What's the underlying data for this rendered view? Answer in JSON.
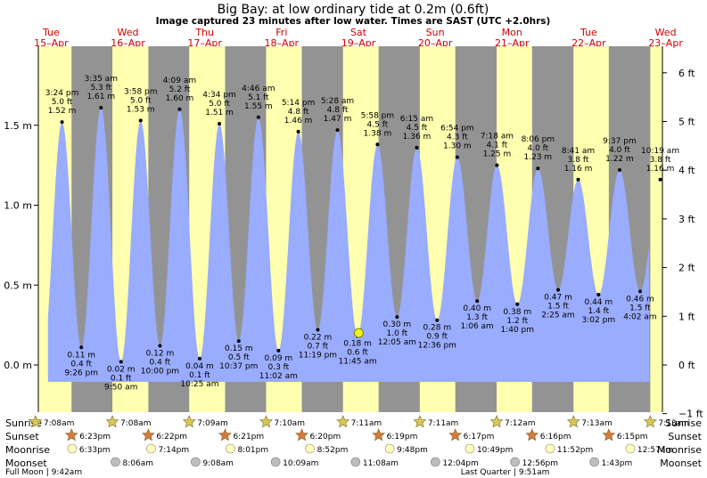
{
  "title": "Big Bay: at low  ordinary tide at 0.2m (0.6ft)",
  "subtitle": "Image captured 23 minutes after low water. Times are SAST (UTC +2.0hrs)",
  "days": [
    {
      "dow": "Tue",
      "date": "15–Apr"
    },
    {
      "dow": "Wed",
      "date": "16–Apr"
    },
    {
      "dow": "Thu",
      "date": "17–Apr"
    },
    {
      "dow": "Fri",
      "date": "18–Apr"
    },
    {
      "dow": "Sat",
      "date": "19–Apr"
    },
    {
      "dow": "Sun",
      "date": "20–Apr"
    },
    {
      "dow": "Mon",
      "date": "21–Apr"
    },
    {
      "dow": "Tue",
      "date": "22–Apr"
    },
    {
      "dow": "Wed",
      "date": "23–Apr"
    }
  ],
  "chart_data": {
    "type": "area",
    "ylabel_left_unit": "m",
    "ylabel_right_unit": "ft",
    "ylim_m": [
      -0.3,
      1.85
    ],
    "yticks_left": [
      "0.0 m",
      "0.5 m",
      "1.0 m",
      "1.5 m"
    ],
    "yticks_left_values": [
      0.0,
      0.5,
      1.0,
      1.5
    ],
    "yticks_right": [
      "−1 ft",
      "0 ft",
      "1 ft",
      "2 ft",
      "3 ft",
      "4 ft",
      "5 ft",
      "6 ft"
    ],
    "yticks_right_values_ft": [
      -1,
      0,
      1,
      2,
      3,
      4,
      5,
      6
    ],
    "start_hour": 8,
    "end_hour": 11,
    "tides": [
      {
        "type": "high",
        "day": 0,
        "time": "3:24 pm",
        "ft": "5.0 ft",
        "m": 1.52
      },
      {
        "type": "low",
        "day": 0,
        "time": "9:26 pm",
        "ft": "0.4 ft",
        "m": 0.11
      },
      {
        "type": "high",
        "day": 1,
        "time": "3:35 am",
        "ft": "5.3 ft",
        "m": 1.61
      },
      {
        "type": "low",
        "day": 1,
        "time": "9:50 am",
        "ft": "0.1 ft",
        "m": 0.02
      },
      {
        "type": "high",
        "day": 1,
        "time": "3:58 pm",
        "ft": "5.0 ft",
        "m": 1.53
      },
      {
        "type": "low",
        "day": 1,
        "time": "10:00 pm",
        "ft": "0.4 ft",
        "m": 0.12
      },
      {
        "type": "high",
        "day": 2,
        "time": "4:09 am",
        "ft": "5.2 ft",
        "m": 1.6
      },
      {
        "type": "low",
        "day": 2,
        "time": "10:25 am",
        "ft": "0.1 ft",
        "m": 0.04
      },
      {
        "type": "high",
        "day": 2,
        "time": "4:34 pm",
        "ft": "5.0 ft",
        "m": 1.51
      },
      {
        "type": "low",
        "day": 2,
        "time": "10:37 pm",
        "ft": "0.5 ft",
        "m": 0.15
      },
      {
        "type": "high",
        "day": 3,
        "time": "4:46 am",
        "ft": "5.1 ft",
        "m": 1.55
      },
      {
        "type": "low",
        "day": 3,
        "time": "11:02 am",
        "ft": "0.3 ft",
        "m": 0.09
      },
      {
        "type": "high",
        "day": 3,
        "time": "5:14 pm",
        "ft": "4.8 ft",
        "m": 1.46
      },
      {
        "type": "low",
        "day": 3,
        "time": "11:19 pm",
        "ft": "0.7 ft",
        "m": 0.22
      },
      {
        "type": "high",
        "day": 4,
        "time": "5:28 am",
        "ft": "4.8 ft",
        "m": 1.47
      },
      {
        "type": "low",
        "day": 4,
        "time": "11:45 am",
        "ft": "0.6 ft",
        "m": 0.18
      },
      {
        "type": "high",
        "day": 4,
        "time": "5:58 pm",
        "ft": "4.5 ft",
        "m": 1.38
      },
      {
        "type": "low",
        "day": 5,
        "time": "12:05 am",
        "ft": "1.0 ft",
        "m": 0.3
      },
      {
        "type": "high",
        "day": 5,
        "time": "6:15 am",
        "ft": "4.5 ft",
        "m": 1.36
      },
      {
        "type": "low",
        "day": 5,
        "time": "12:36 pm",
        "ft": "0.9 ft",
        "m": 0.28
      },
      {
        "type": "high",
        "day": 5,
        "time": "6:54 pm",
        "ft": "4.3 ft",
        "m": 1.3
      },
      {
        "type": "low",
        "day": 6,
        "time": "1:06 am",
        "ft": "1.3 ft",
        "m": 0.4
      },
      {
        "type": "high",
        "day": 6,
        "time": "7:18 am",
        "ft": "4.1 ft",
        "m": 1.25
      },
      {
        "type": "low",
        "day": 6,
        "time": "1:40 pm",
        "ft": "1.2 ft",
        "m": 0.38
      },
      {
        "type": "high",
        "day": 6,
        "time": "8:06 pm",
        "ft": "4.0 ft",
        "m": 1.23
      },
      {
        "type": "low",
        "day": 7,
        "time": "2:25 am",
        "ft": "1.5 ft",
        "m": 0.47
      },
      {
        "type": "high",
        "day": 7,
        "time": "8:41 am",
        "ft": "3.8 ft",
        "m": 1.16
      },
      {
        "type": "low",
        "day": 7,
        "time": "3:02 pm",
        "ft": "1.4 ft",
        "m": 0.44
      },
      {
        "type": "high",
        "day": 7,
        "time": "9:37 pm",
        "ft": "4.0 ft",
        "m": 1.22
      },
      {
        "type": "low",
        "day": 8,
        "time": "4:02 am",
        "ft": "1.5 ft",
        "m": 0.46
      },
      {
        "type": "high",
        "day": 8,
        "time": "10:19 am",
        "ft": "3.8 ft",
        "m": 1.16
      }
    ],
    "current": {
      "day": 4,
      "time": "12:08 pm",
      "m": 0.2
    },
    "sun": [
      {
        "rise": "7:08am",
        "set": "6:23pm"
      },
      {
        "rise": "7:08am",
        "set": "6:22pm"
      },
      {
        "rise": "7:09am",
        "set": "6:21pm"
      },
      {
        "rise": "7:10am",
        "set": "6:20pm"
      },
      {
        "rise": "7:11am",
        "set": "6:19pm"
      },
      {
        "rise": "7:11am",
        "set": "6:17pm"
      },
      {
        "rise": "7:12am",
        "set": "6:16pm"
      },
      {
        "rise": "7:13am",
        "set": "6:15pm"
      },
      {
        "rise": "7:13am",
        "set": ""
      }
    ],
    "moonrise": [
      "6:33pm",
      "7:14pm",
      "8:01pm",
      "8:52pm",
      "9:48pm",
      "10:49pm",
      "11:52pm",
      "12:57am"
    ],
    "moonset": [
      "8:06am",
      "9:08am",
      "10:09am",
      "11:08am",
      "12:04pm",
      "12:56pm",
      "1:43pm"
    ],
    "moon_phase_notes": [
      {
        "text": "Full Moon | 9:42am",
        "day": 0,
        "time": "9:42am"
      },
      {
        "text": "Last Quarter | 9:51am",
        "day": 6,
        "time": "9:51am"
      }
    ]
  },
  "legend_rows": {
    "sunrise": "Sunrise",
    "sunset": "Sunset",
    "moonrise": "Moonrise",
    "moonset": "Moonset"
  },
  "colors": {
    "night": "#939393",
    "day": "#ffffb0",
    "water": "#9aacfd",
    "day_label": "#d00000",
    "sun_star": "#d7c855",
    "sunset_star": "#d87a3a",
    "moon_rise": "#ffffc0",
    "moon_set": "#bdbdbd"
  }
}
